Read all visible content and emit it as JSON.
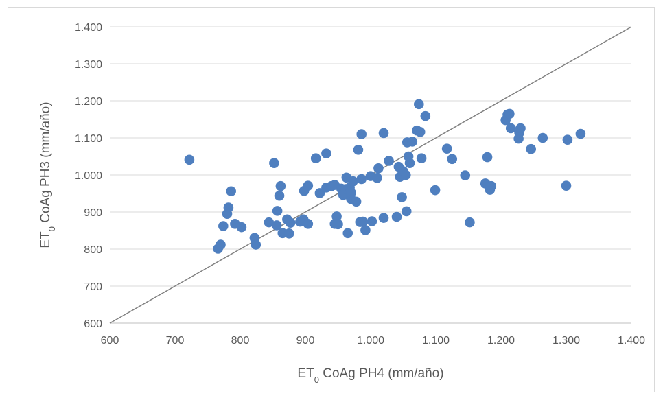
{
  "chart_data": {
    "type": "scatter",
    "xlabel": {
      "main": "ET",
      "sub": "0",
      "rest": " CoAg PH4 (mm/año)"
    },
    "ylabel": {
      "main": "ET",
      "sub": "0",
      "rest": " CoAg PH3 (mm/año)"
    },
    "xlim": [
      600,
      1400
    ],
    "ylim": [
      600,
      1400
    ],
    "x_ticks": [
      600,
      700,
      800,
      900,
      1000,
      1100,
      1200,
      1300,
      1400
    ],
    "x_tick_labels": [
      "600",
      "700",
      "800",
      "900",
      "1.000",
      "1.100",
      "1.200",
      "1.300",
      "1.400"
    ],
    "y_ticks": [
      600,
      700,
      800,
      900,
      1000,
      1100,
      1200,
      1300,
      1400
    ],
    "y_tick_labels": [
      "600",
      "700",
      "800",
      "900",
      "1.000",
      "1.100",
      "1.200",
      "1.300",
      "1.400"
    ],
    "grid": "horizontal",
    "reference_line": {
      "from": [
        600,
        600
      ],
      "to": [
        1400,
        1400
      ],
      "color": "#808080"
    },
    "marker_color": "#4f7fbf",
    "points": [
      [
        722,
        1041
      ],
      [
        766,
        801
      ],
      [
        770,
        812
      ],
      [
        774,
        862
      ],
      [
        780,
        895
      ],
      [
        782,
        912
      ],
      [
        786,
        956
      ],
      [
        792,
        868
      ],
      [
        802,
        859
      ],
      [
        822,
        830
      ],
      [
        824,
        812
      ],
      [
        844,
        872
      ],
      [
        852,
        1032
      ],
      [
        856,
        864
      ],
      [
        857,
        903
      ],
      [
        860,
        944
      ],
      [
        862,
        970
      ],
      [
        865,
        843
      ],
      [
        872,
        880
      ],
      [
        875,
        842
      ],
      [
        877,
        871
      ],
      [
        892,
        874
      ],
      [
        897,
        880
      ],
      [
        898,
        957
      ],
      [
        904,
        971
      ],
      [
        904,
        868
      ],
      [
        916,
        1045
      ],
      [
        922,
        951
      ],
      [
        932,
        1058
      ],
      [
        932,
        966
      ],
      [
        940,
        970
      ],
      [
        945,
        973
      ],
      [
        945,
        868
      ],
      [
        948,
        888
      ],
      [
        950,
        867
      ],
      [
        955,
        963
      ],
      [
        957,
        957
      ],
      [
        958,
        946
      ],
      [
        962,
        962
      ],
      [
        963,
        993
      ],
      [
        965,
        843
      ],
      [
        968,
        966
      ],
      [
        970,
        935
      ],
      [
        970,
        952
      ],
      [
        973,
        983
      ],
      [
        978,
        928
      ],
      [
        981,
        1068
      ],
      [
        984,
        873
      ],
      [
        986,
        1110
      ],
      [
        986,
        989
      ],
      [
        988,
        874
      ],
      [
        992,
        851
      ],
      [
        1000,
        997
      ],
      [
        1002,
        875
      ],
      [
        1010,
        992
      ],
      [
        1012,
        1018
      ],
      [
        1020,
        1113
      ],
      [
        1020,
        884
      ],
      [
        1028,
        1038
      ],
      [
        1040,
        887
      ],
      [
        1043,
        1022
      ],
      [
        1045,
        995
      ],
      [
        1048,
        940
      ],
      [
        1050,
        1010
      ],
      [
        1054,
        1000
      ],
      [
        1055,
        902
      ],
      [
        1056,
        1088
      ],
      [
        1058,
        1050
      ],
      [
        1060,
        1032
      ],
      [
        1064,
        1090
      ],
      [
        1071,
        1120
      ],
      [
        1074,
        1191
      ],
      [
        1076,
        1116
      ],
      [
        1078,
        1045
      ],
      [
        1084,
        1159
      ],
      [
        1099,
        959
      ],
      [
        1117,
        1071
      ],
      [
        1125,
        1043
      ],
      [
        1145,
        999
      ],
      [
        1152,
        872
      ],
      [
        1176,
        977
      ],
      [
        1179,
        1048
      ],
      [
        1183,
        960
      ],
      [
        1185,
        970
      ],
      [
        1207,
        1148
      ],
      [
        1210,
        1163
      ],
      [
        1213,
        1165
      ],
      [
        1215,
        1126
      ],
      [
        1227,
        1098
      ],
      [
        1228,
        1114
      ],
      [
        1230,
        1126
      ],
      [
        1246,
        1070
      ],
      [
        1264,
        1100
      ],
      [
        1300,
        971
      ],
      [
        1302,
        1095
      ],
      [
        1322,
        1111
      ]
    ]
  }
}
